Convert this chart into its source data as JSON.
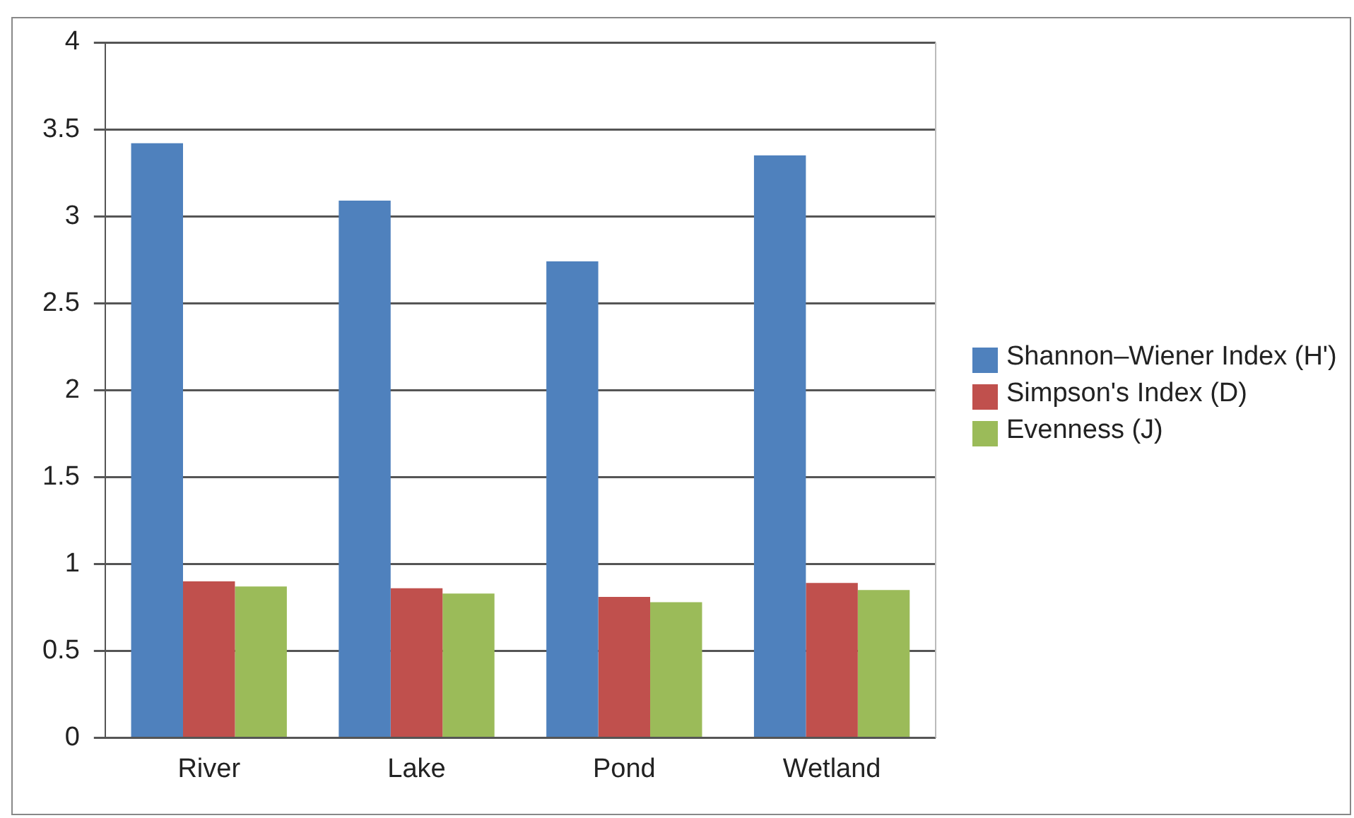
{
  "chart_data": {
    "type": "bar",
    "categories": [
      "River",
      "Lake",
      "Pond",
      "Wetland"
    ],
    "series": [
      {
        "name": "Shannon–Wiener Index (H')",
        "color": "#4f81bd",
        "values": [
          3.42,
          3.09,
          2.74,
          3.35
        ]
      },
      {
        "name": "Simpson's Index (D)",
        "color": "#c0504d",
        "values": [
          0.9,
          0.86,
          0.81,
          0.89
        ]
      },
      {
        "name": "Evenness (J)",
        "color": "#9bbb59",
        "values": [
          0.87,
          0.83,
          0.78,
          0.85
        ]
      }
    ],
    "ylim": [
      0,
      4
    ],
    "yticks": [
      0,
      0.5,
      1,
      1.5,
      2,
      2.5,
      3,
      3.5,
      4
    ],
    "grid": "y",
    "legend": "right"
  }
}
